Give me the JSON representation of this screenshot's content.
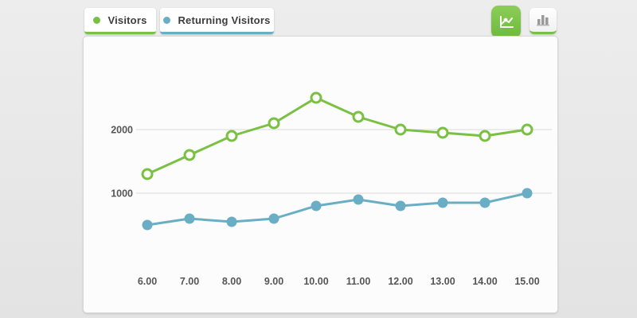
{
  "legend": {
    "items": [
      {
        "label": "Visitors",
        "color": "#7ac143"
      },
      {
        "label": "Returning Visitors",
        "color": "#6aaec5"
      }
    ]
  },
  "toolbar": {
    "buttons": [
      {
        "icon": "line-chart-icon",
        "active": true,
        "active_color": "#76c043"
      },
      {
        "icon": "bar-chart-icon",
        "active": false,
        "underline_color": "#76c043"
      }
    ]
  },
  "colors": {
    "visitors_line": "#7ac143",
    "returning_line": "#6aaec5",
    "gridline": "#dadada",
    "axis_text": "#565656",
    "panel_bg": "#fcfcfc",
    "page_bg": "#e9e9e9"
  },
  "chart_data": {
    "type": "line",
    "x": [
      "6.00",
      "7.00",
      "8.00",
      "9.00",
      "10.00",
      "11.00",
      "12.00",
      "13.00",
      "14.00",
      "15.00"
    ],
    "series": [
      {
        "name": "Visitors",
        "color": "#7ac143",
        "marker": "open",
        "values": [
          1300,
          1600,
          1900,
          2100,
          2500,
          2200,
          2000,
          1950,
          1900,
          2000
        ]
      },
      {
        "name": "Returning Visitors",
        "color": "#6aaec5",
        "marker": "filled",
        "values": [
          500,
          600,
          550,
          600,
          800,
          900,
          800,
          850,
          850,
          1000
        ]
      }
    ],
    "yticks": [
      1000,
      2000
    ],
    "ylim": [
      0,
      2750
    ],
    "grid": "horizontal-only",
    "legend_position": "top-left",
    "title": "",
    "xlabel": "",
    "ylabel": ""
  }
}
